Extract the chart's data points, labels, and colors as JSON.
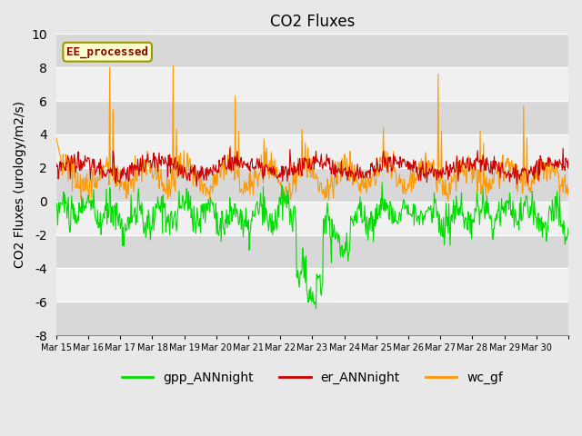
{
  "title": "CO2 Fluxes",
  "ylabel": "CO2 Fluxes (urology/m2/s)",
  "ylim": [
    -8,
    10
  ],
  "yticks": [
    -8,
    -6,
    -4,
    -2,
    0,
    2,
    4,
    6,
    8,
    10
  ],
  "xlim": [
    0,
    16
  ],
  "xtick_positions": [
    0,
    1,
    2,
    3,
    4,
    5,
    6,
    7,
    8,
    9,
    10,
    11,
    12,
    13,
    14,
    15,
    16
  ],
  "xtick_labels": [
    "Mar 15",
    "Mar 16",
    "Mar 17",
    "Mar 18",
    "Mar 19",
    "Mar 20",
    "Mar 21",
    "Mar 22",
    "Mar 23",
    "Mar 24",
    "Mar 25",
    "Mar 26",
    "Mar 27",
    "Mar 28",
    "Mar 29",
    "Mar 30",
    ""
  ],
  "colors": {
    "gpp": "#00dd00",
    "er": "#cc0000",
    "wc": "#ff9900"
  },
  "legend_labels": [
    "gpp_ANNnight",
    "er_ANNnight",
    "wc_gf"
  ],
  "annotation_text": "EE_processed",
  "annotation_box_color": "#ffffcc",
  "annotation_text_color": "#8b0000",
  "annotation_border_color": "#999900",
  "bg_color": "#e8e8e8",
  "plot_bg_color": "#f0f0f0",
  "title_fontsize": 12,
  "axis_fontsize": 10,
  "legend_fontsize": 10,
  "line_width": 0.8,
  "n_days": 16,
  "pts_per_day": 48
}
